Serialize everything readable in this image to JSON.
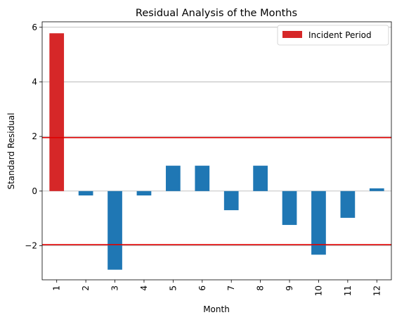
{
  "chart_data": {
    "type": "bar",
    "title": "Residual Analysis of the Months",
    "xlabel": "Month",
    "ylabel": "Standard Residual",
    "categories": [
      "1",
      "2",
      "3",
      "4",
      "5",
      "6",
      "7",
      "8",
      "9",
      "10",
      "11",
      "12"
    ],
    "values": [
      5.78,
      -0.16,
      -2.88,
      -0.16,
      0.93,
      0.93,
      -0.7,
      0.93,
      -1.24,
      -2.33,
      -0.98,
      0.1
    ],
    "highlight_index": 0,
    "highlight_label": "Incident Period",
    "ylim": [
      -3.25,
      6.2
    ],
    "yticks": [
      -2,
      0,
      2,
      4,
      6
    ],
    "ytick_labels": [
      "−2",
      "0",
      "2",
      "4",
      "6"
    ],
    "reference_lines": [
      1.96,
      -1.96
    ],
    "grid": "horizontal",
    "legend_position": "top-right",
    "colors": {
      "bar": "#1f77b4",
      "highlight": "#d62728",
      "reference_line": "#e00000",
      "grid": "#b0b0b0"
    }
  }
}
